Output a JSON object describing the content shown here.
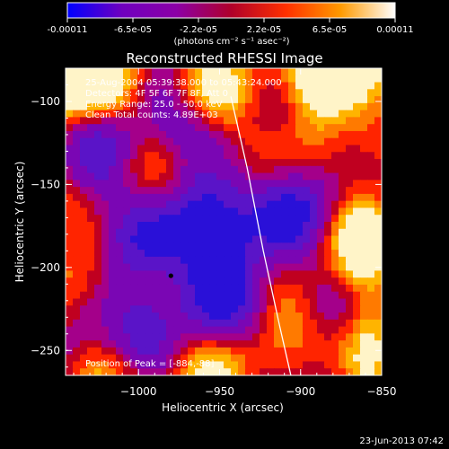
{
  "colorbar": {
    "tick_labels": [
      "-0.00011",
      "-6.5e-05",
      "-2.2e-05",
      "2.2e-05",
      "6.5e-05",
      "0.00011"
    ],
    "unit_label": "(photons cm⁻² s⁻¹ asec⁻²)",
    "range": [
      -0.00011,
      0.00011
    ],
    "stops": [
      "#0000ff",
      "#6f00bf",
      "#8c00a6",
      "#b0002a",
      "#ff3000",
      "#ff9a00",
      "#ffffff"
    ]
  },
  "chart_data": {
    "type": "heatmap",
    "title": "Reconstructed RHESSI Image",
    "xlabel": "Heliocentric X (arcsec)",
    "ylabel": "Heliocentric Y (arcsec)",
    "xlim": [
      -1045,
      -850
    ],
    "ylim": [
      -265,
      -80
    ],
    "x_ticks": [
      -1000,
      -950,
      -900,
      -850
    ],
    "x_tick_labels": [
      "−1000",
      "−950",
      "−900",
      "−850"
    ],
    "y_ticks": [
      -100,
      -150,
      -200,
      -250
    ],
    "y_tick_labels": [
      "−100",
      "−150",
      "−200",
      "−250"
    ],
    "annotations": [
      "25-Aug-2004 05:39:38.000 to 05:43:24.000",
      "Detectors: 4F 5F 6F 7F 8F, Att 0",
      "Energy Range: 25.0 - 50.0 keV",
      "Clean    Total counts: 4.89E+03"
    ],
    "peak_label": "Position of Peak = [-884,-88]",
    "peak_position": [
      -884,
      -88
    ],
    "limb_curve": {
      "x": [
        -943,
        -933,
        -923,
        -913,
        -906
      ],
      "y": [
        -97,
        -140,
        -190,
        -235,
        -265
      ]
    },
    "grid": false,
    "min_marker": [
      -980,
      -205
    ]
  },
  "footer": {
    "timestamp": "23-Jun-2013 07:42"
  }
}
